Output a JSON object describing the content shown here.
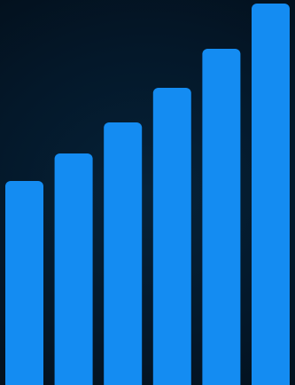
{
  "chart_data": {
    "type": "bar",
    "categories": [
      "",
      "",
      "",
      "",
      "",
      ""
    ],
    "values": [
      230,
      261,
      296,
      335,
      379,
      430
    ],
    "ylim": [
      0,
      434
    ],
    "title": "",
    "xlabel": "",
    "ylabel": "",
    "grid": false,
    "legend": "none"
  },
  "colors": {
    "bar": "#148cf2",
    "background_center": "#062238",
    "background_edge": "#020b14"
  }
}
